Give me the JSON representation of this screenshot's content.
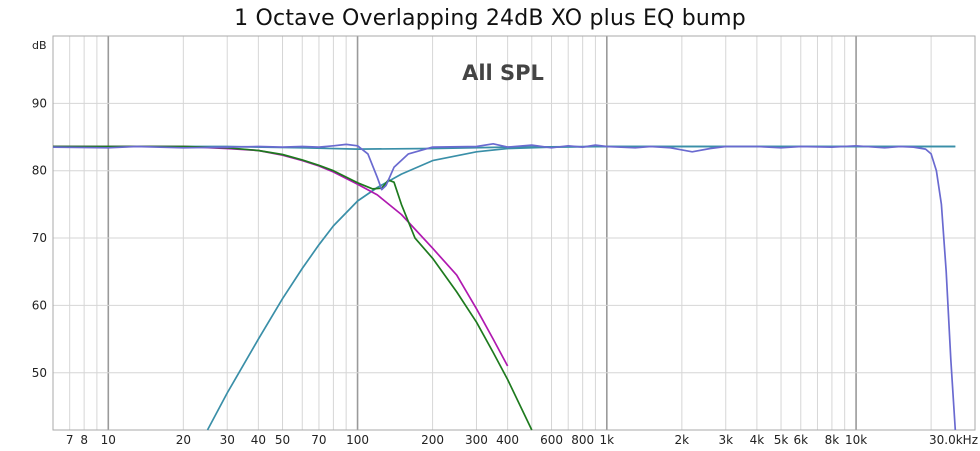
{
  "chart_data": {
    "type": "line",
    "title": "1 Octave Overlapping 24dB XO plus EQ bump",
    "subtitle": "All SPL",
    "ylabel": "dB",
    "x_scale": "log",
    "xlim": [
      6,
      30000
    ],
    "ylim": [
      41.5,
      100
    ],
    "grid": true,
    "y_ticks": [
      "50",
      "60",
      "70",
      "80",
      "90"
    ],
    "x_ticks": [
      {
        "value": 7,
        "label": "7"
      },
      {
        "value": 8,
        "label": "8"
      },
      {
        "value": 10,
        "label": "10"
      },
      {
        "value": 20,
        "label": "20"
      },
      {
        "value": 30,
        "label": "30"
      },
      {
        "value": 40,
        "label": "40"
      },
      {
        "value": 50,
        "label": "50"
      },
      {
        "value": 70,
        "label": "70"
      },
      {
        "value": 100,
        "label": "100"
      },
      {
        "value": 200,
        "label": "200"
      },
      {
        "value": 300,
        "label": "300"
      },
      {
        "value": 400,
        "label": "400"
      },
      {
        "value": 600,
        "label": "600"
      },
      {
        "value": 800,
        "label": "800"
      },
      {
        "value": 1000,
        "label": "1k"
      },
      {
        "value": 2000,
        "label": "2k"
      },
      {
        "value": 3000,
        "label": "3k"
      },
      {
        "value": 4000,
        "label": "4k"
      },
      {
        "value": 5000,
        "label": "5k"
      },
      {
        "value": 6000,
        "label": "6k"
      },
      {
        "value": 8000,
        "label": "8k"
      },
      {
        "value": 10000,
        "label": "10k"
      },
      {
        "value": 30000,
        "label": "30.0kHz"
      }
    ],
    "series": [
      {
        "color": "#3a8fa8",
        "points": [
          [
            6,
            83.6
          ],
          [
            10,
            83.6
          ],
          [
            30,
            83.6
          ],
          [
            60,
            83.4
          ],
          [
            100,
            83.2
          ],
          [
            200,
            83.3
          ],
          [
            400,
            83.5
          ],
          [
            1000,
            83.6
          ],
          [
            10000,
            83.6
          ],
          [
            25000,
            83.6
          ]
        ]
      },
      {
        "color": "#3a8fa8",
        "points": [
          [
            25,
            41.5
          ],
          [
            30,
            47
          ],
          [
            40,
            55
          ],
          [
            50,
            61
          ],
          [
            60,
            65.5
          ],
          [
            70,
            69
          ],
          [
            80,
            71.8
          ],
          [
            100,
            75.5
          ],
          [
            120,
            77.5
          ],
          [
            150,
            79.5
          ],
          [
            200,
            81.5
          ],
          [
            300,
            82.8
          ],
          [
            400,
            83.3
          ],
          [
            600,
            83.5
          ],
          [
            1000,
            83.6
          ],
          [
            25000,
            83.6
          ]
        ]
      },
      {
        "color": "#b019b0",
        "points": [
          [
            6,
            83.6
          ],
          [
            20,
            83.6
          ],
          [
            30,
            83.3
          ],
          [
            40,
            83
          ],
          [
            50,
            82.3
          ],
          [
            60,
            81.5
          ],
          [
            70,
            80.7
          ],
          [
            80,
            79.8
          ],
          [
            100,
            78
          ],
          [
            120,
            76.4
          ],
          [
            150,
            73.5
          ],
          [
            200,
            68.5
          ],
          [
            250,
            64.5
          ],
          [
            300,
            59.5
          ],
          [
            350,
            55
          ],
          [
            400,
            51
          ]
        ]
      },
      {
        "color": "#1e7a1e",
        "points": [
          [
            6,
            83.6
          ],
          [
            20,
            83.6
          ],
          [
            30,
            83.4
          ],
          [
            40,
            83
          ],
          [
            50,
            82.4
          ],
          [
            60,
            81.6
          ],
          [
            70,
            80.8
          ],
          [
            80,
            80
          ],
          [
            100,
            78.2
          ],
          [
            115,
            77.3
          ],
          [
            125,
            77.4
          ],
          [
            133,
            78.6
          ],
          [
            140,
            78.3
          ],
          [
            150,
            75
          ],
          [
            170,
            70
          ],
          [
            200,
            67
          ],
          [
            250,
            62
          ],
          [
            300,
            57.5
          ],
          [
            350,
            53
          ],
          [
            400,
            49
          ],
          [
            500,
            41.5
          ]
        ]
      },
      {
        "color": "#6a6ad0",
        "points": [
          [
            6,
            83.5
          ],
          [
            10,
            83.4
          ],
          [
            13,
            83.6
          ],
          [
            20,
            83.4
          ],
          [
            30,
            83.5
          ],
          [
            40,
            83.6
          ],
          [
            50,
            83.5
          ],
          [
            60,
            83.6
          ],
          [
            70,
            83.5
          ],
          [
            80,
            83.7
          ],
          [
            90,
            83.9
          ],
          [
            100,
            83.7
          ],
          [
            110,
            82.5
          ],
          [
            120,
            79
          ],
          [
            125,
            77.2
          ],
          [
            130,
            77.8
          ],
          [
            140,
            80.5
          ],
          [
            160,
            82.5
          ],
          [
            200,
            83.5
          ],
          [
            300,
            83.6
          ],
          [
            350,
            84
          ],
          [
            400,
            83.5
          ],
          [
            500,
            83.8
          ],
          [
            600,
            83.4
          ],
          [
            700,
            83.7
          ],
          [
            800,
            83.5
          ],
          [
            900,
            83.8
          ],
          [
            1000,
            83.6
          ],
          [
            1300,
            83.4
          ],
          [
            1500,
            83.6
          ],
          [
            1800,
            83.4
          ],
          [
            2200,
            82.8
          ],
          [
            2600,
            83.3
          ],
          [
            3000,
            83.6
          ],
          [
            4000,
            83.6
          ],
          [
            5000,
            83.4
          ],
          [
            6000,
            83.6
          ],
          [
            8000,
            83.5
          ],
          [
            10000,
            83.7
          ],
          [
            13000,
            83.4
          ],
          [
            15000,
            83.6
          ],
          [
            17000,
            83.5
          ],
          [
            19000,
            83.2
          ],
          [
            20000,
            82.5
          ],
          [
            21000,
            80
          ],
          [
            22000,
            75
          ],
          [
            23000,
            65
          ],
          [
            24000,
            52
          ],
          [
            25000,
            41.5
          ]
        ]
      }
    ]
  }
}
